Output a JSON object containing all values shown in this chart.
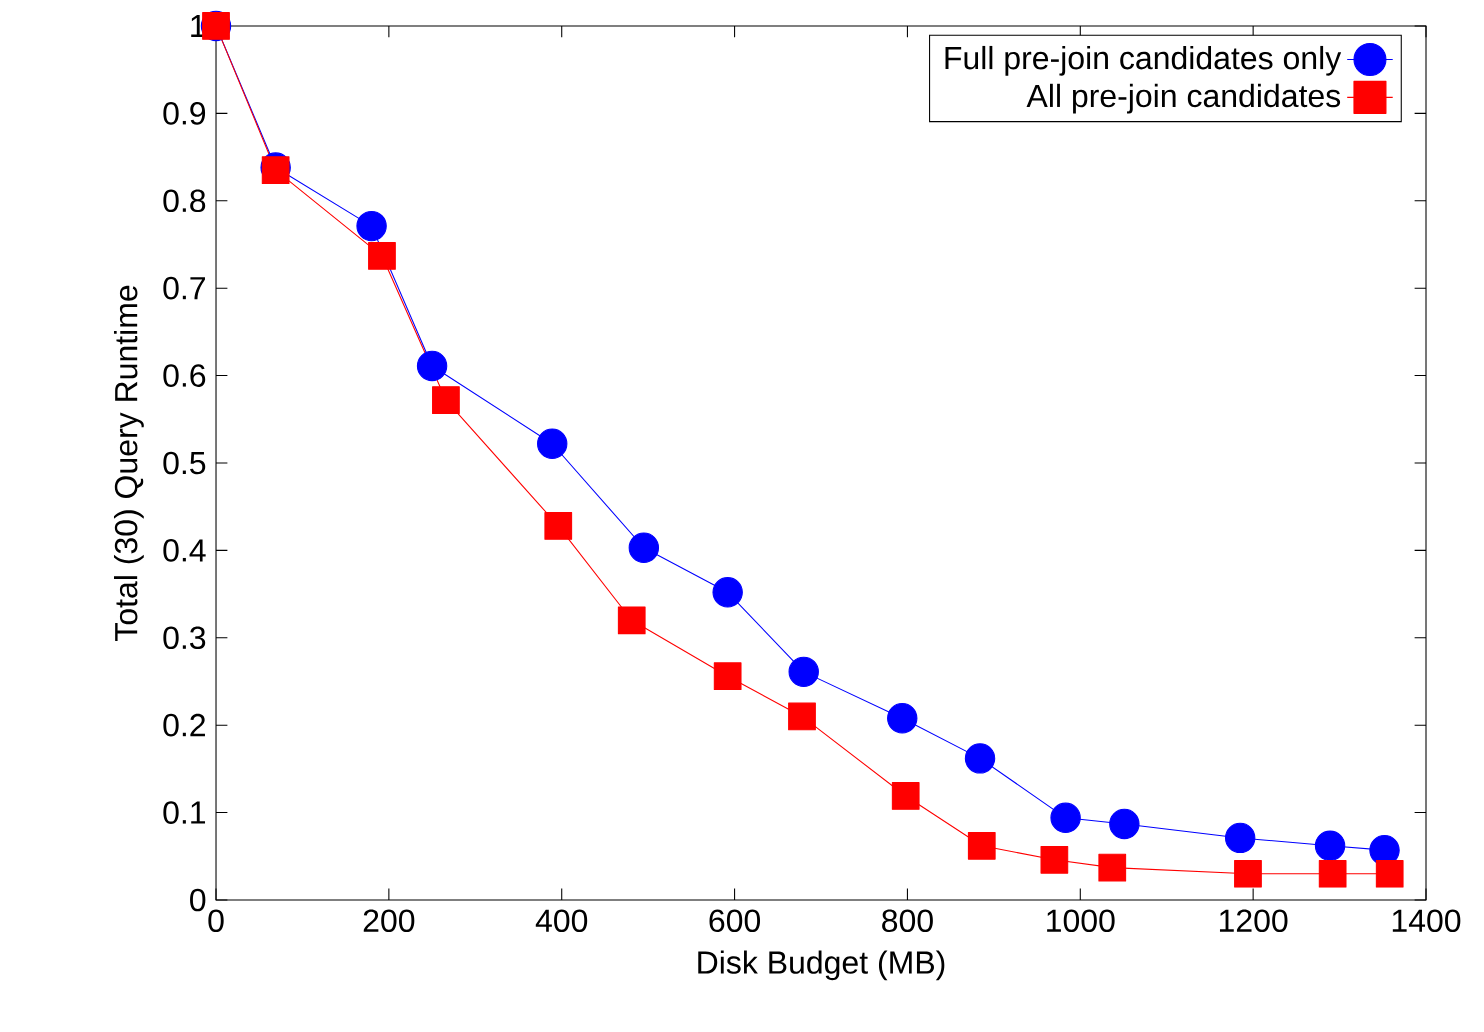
{
  "chart_data": {
    "type": "line",
    "xlabel": "Disk Budget (MB)",
    "ylabel": "Total (30) Query Runtime",
    "xlim": [
      0,
      1400
    ],
    "ylim": [
      0,
      1
    ],
    "xticks": [
      0,
      200,
      400,
      600,
      800,
      1000,
      1200,
      1400
    ],
    "yticks": [
      0,
      0.1,
      0.2,
      0.3,
      0.4,
      0.5,
      0.6,
      0.7,
      0.8,
      0.9,
      1
    ],
    "grid": false,
    "legend": "top right",
    "series": [
      {
        "name": "Full pre-join candidates only",
        "color": "#0000ff",
        "marker": "circle",
        "x": [
          0,
          69,
          180,
          250,
          389,
          495,
          592,
          680,
          794,
          884,
          983,
          1051,
          1185,
          1289,
          1352
        ],
        "values": [
          1,
          0.838,
          0.771,
          0.611,
          0.522,
          0.403,
          0.352,
          0.261,
          0.208,
          0.162,
          0.094,
          0.087,
          0.071,
          0.062,
          0.057
        ]
      },
      {
        "name": "All pre-join candidates",
        "color": "#ff0000",
        "marker": "square",
        "x": [
          0,
          69,
          192,
          266,
          396,
          481,
          592,
          678,
          798,
          886,
          970,
          1037,
          1194,
          1292,
          1358
        ],
        "values": [
          1,
          0.835,
          0.737,
          0.572,
          0.428,
          0.32,
          0.256,
          0.21,
          0.119,
          0.062,
          0.046,
          0.037,
          0.03,
          0.03,
          0.03
        ]
      }
    ]
  }
}
